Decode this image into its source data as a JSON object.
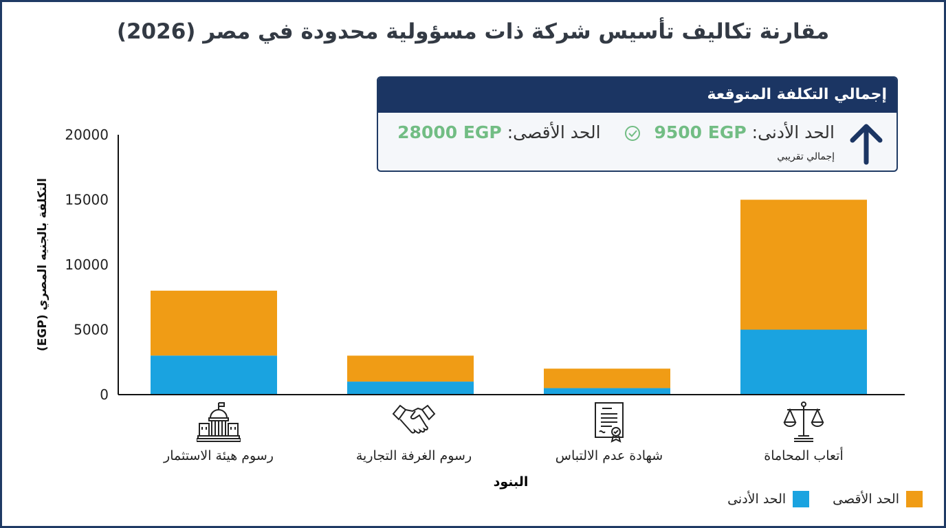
{
  "chart_data": {
    "type": "bar",
    "stacked": true,
    "title": "مقارنة تكاليف تأسيس شركة ذات مسؤولية محدودة في مصر (2026)",
    "xlabel": "البنود",
    "ylabel": "التكلفة بالجنيه المصري (EGP)",
    "ylim": [
      0,
      20000
    ],
    "yticks": [
      "0",
      "5000",
      "10000",
      "15000",
      "20000"
    ],
    "grid": false,
    "legend_position": "bottom-right",
    "categories": [
      "رسوم هيئة الاستثمار",
      "رسوم الغرفة التجارية",
      "شهادة عدم الالتباس",
      "أتعاب المحاماة"
    ],
    "category_icons": [
      "government-building-icon",
      "handshake-icon",
      "certificate-icon",
      "scales-of-justice-icon"
    ],
    "series": [
      {
        "name": "الحد الأدنى",
        "color": "#1aa3e0",
        "values": [
          3000,
          1000,
          500,
          5000
        ]
      },
      {
        "name": "الحد الأقصى",
        "color": "#f09c15",
        "values": [
          8000,
          3000,
          2000,
          15000
        ]
      }
    ]
  },
  "summary": {
    "header": "إجمالي التكلفة المتوقعة",
    "min_label": "الحد الأدنى:",
    "min_value": "9500 EGP",
    "max_label": "الحد الأقصى:",
    "max_value": "28000 EGP",
    "note": "إجمالي تقريبي",
    "icon": "arrow-up-icon",
    "header_color": "#1b3563",
    "value_color": "#72bd84"
  }
}
